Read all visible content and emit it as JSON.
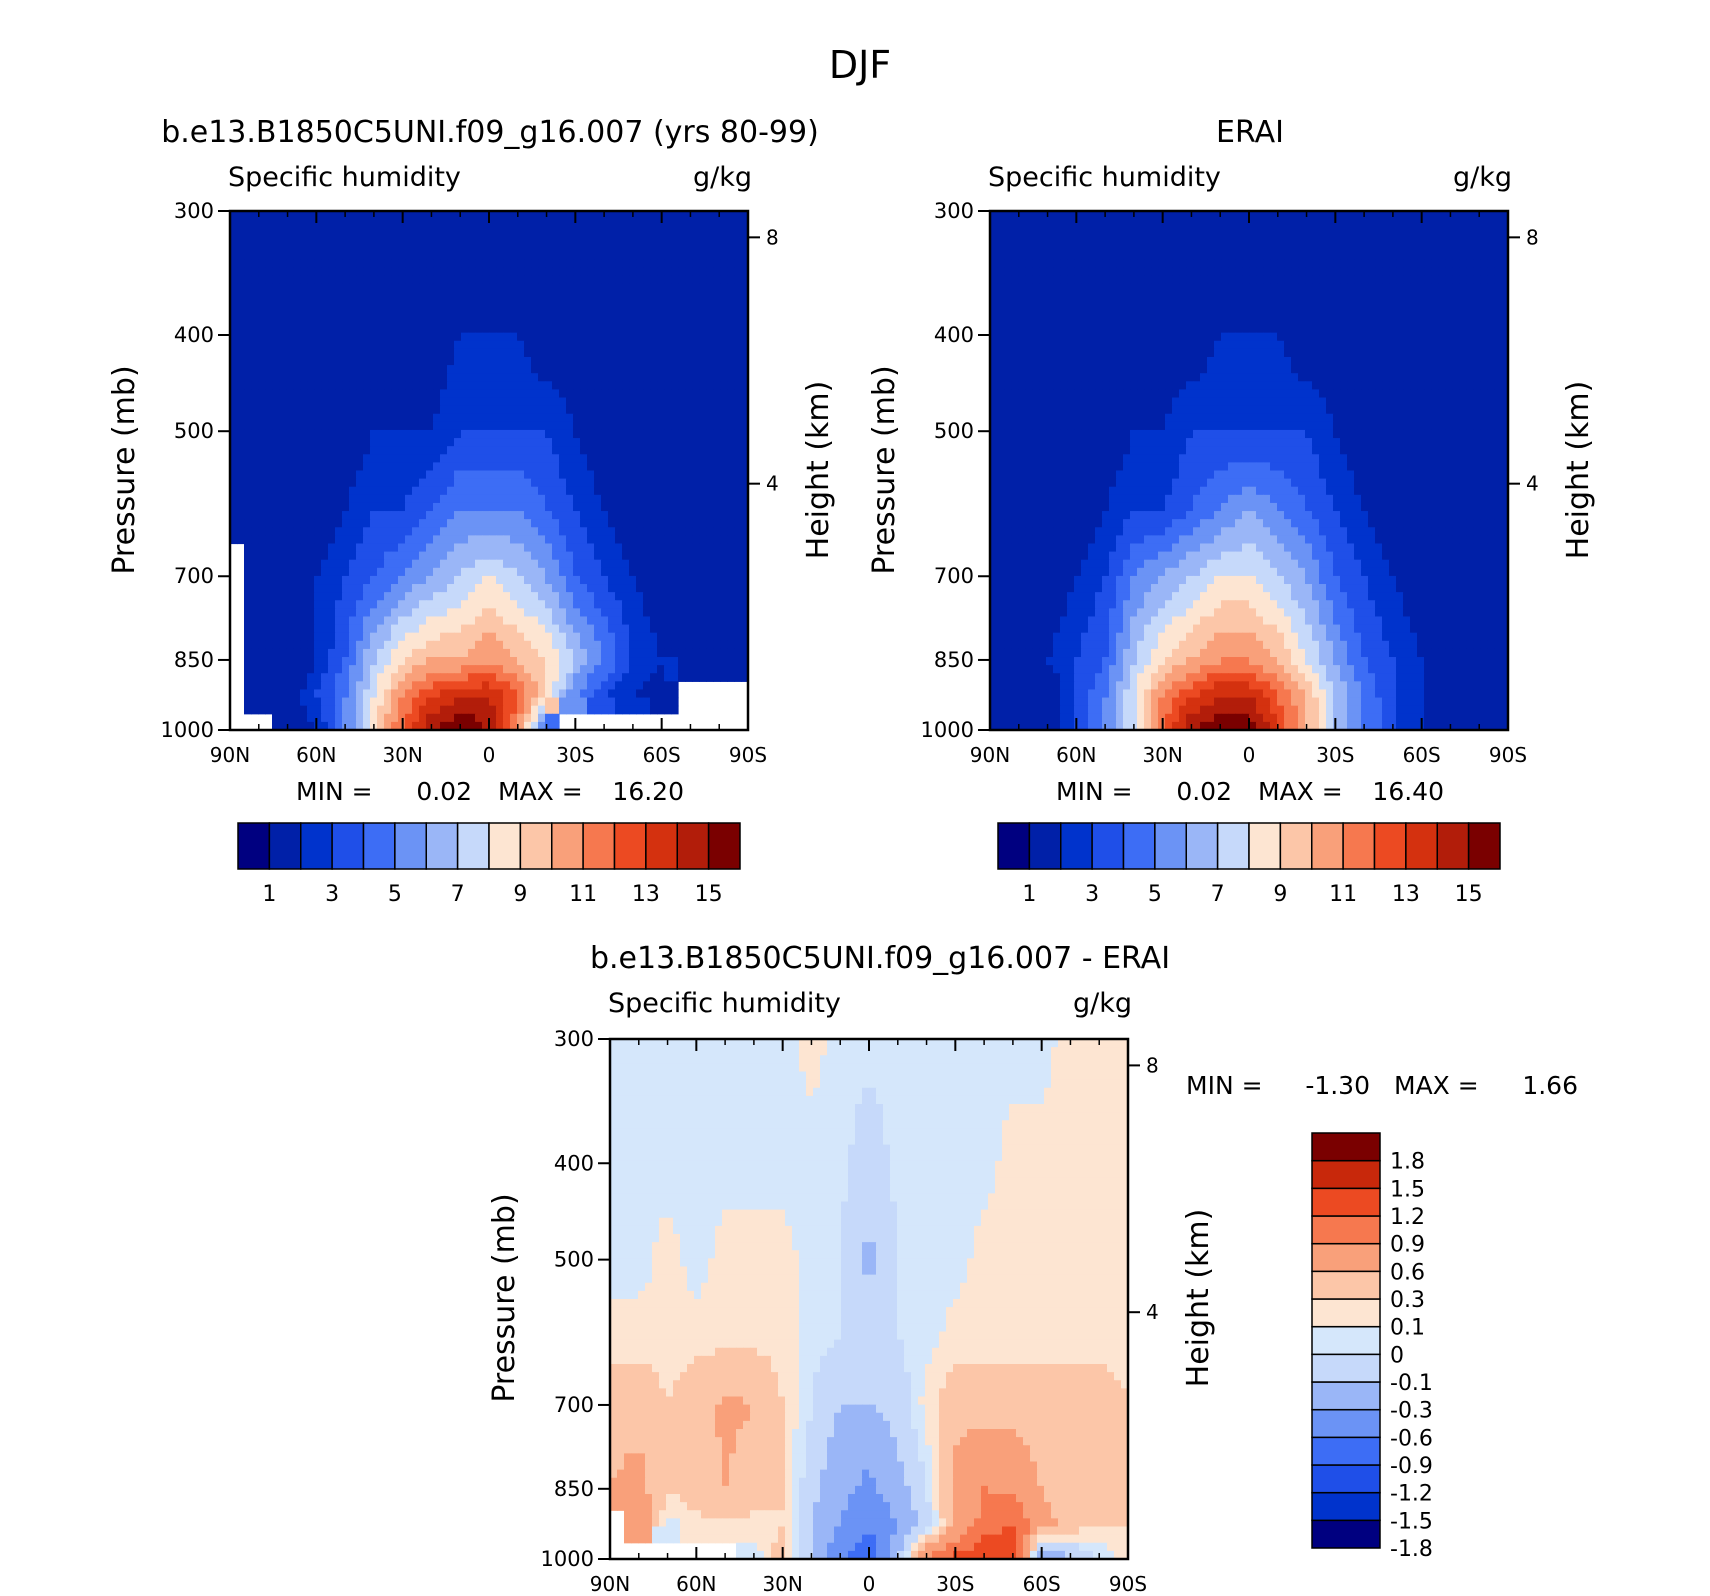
{
  "figure": {
    "title": "DJF"
  },
  "colors": {
    "abs_levels": [
      "#000080",
      "#0020a8",
      "#0033cc",
      "#1f4fe8",
      "#3d6df5",
      "#6b93f5",
      "#9ab6f7",
      "#c6d9fa",
      "#fde5d2",
      "#fcc6a8",
      "#f9a07a",
      "#f6784f",
      "#ec4a22",
      "#d4310f",
      "#b21d0a",
      "#7a0000"
    ],
    "diff_levels": [
      "#000080",
      "#0033cc",
      "#1f4fe8",
      "#3d6df5",
      "#6b93f5",
      "#9ab6f7",
      "#c6d9fa",
      "#d5e7fb",
      "#fde5d2",
      "#fcc6a8",
      "#f9a07a",
      "#f6784f",
      "#ec4a22",
      "#c8280b",
      "#7a0000"
    ]
  },
  "chart_data": [
    {
      "type": "heatmap",
      "panel": "model",
      "title": "b.e13.B1850C5UNI.f09_g16.007 (yrs 80-99)",
      "left_label": "Specific humidity",
      "right_label": "g/kg",
      "ylabel": "Pressure (mb)",
      "y2label": "Height (km)",
      "x_ticks": [
        "90N",
        "60N",
        "30N",
        "0",
        "30S",
        "60S",
        "90S"
      ],
      "y_ticks": [
        300,
        400,
        500,
        700,
        850,
        1000
      ],
      "y2_ticks": [
        8,
        4
      ],
      "ylim": [
        300,
        1000
      ],
      "min_text": "MIN =",
      "min_value": "0.02",
      "max_text": "MAX =",
      "max_value": "16.20",
      "min": 0.02,
      "max": 16.2,
      "colorbar_ticks": [
        "1",
        "3",
        "5",
        "7",
        "9",
        "11",
        "13",
        "15"
      ],
      "levels": [
        1,
        2,
        3,
        4,
        5,
        6,
        7,
        8,
        9,
        10,
        11,
        12,
        13,
        14,
        15
      ],
      "lat": [
        -90,
        -80,
        -70,
        -60,
        -50,
        -40,
        -30,
        -20,
        -10,
        0,
        10,
        20,
        30,
        40,
        50,
        60,
        70,
        80,
        90
      ],
      "field_rows": [
        {
          "p": 1000,
          "values": [
            null,
            null,
            null,
            null,
            null,
            null,
            null,
            4,
            11,
            15,
            16,
            15,
            12,
            9,
            5,
            2,
            1,
            null,
            null
          ]
        },
        {
          "p": 925,
          "values": [
            null,
            null,
            null,
            1,
            2,
            3,
            5,
            9,
            12,
            14,
            14,
            13,
            11,
            8,
            5,
            3,
            1,
            1,
            null
          ]
        },
        {
          "p": 850,
          "values": [
            1,
            1,
            1,
            2,
            3,
            5,
            7,
            9,
            10,
            11,
            10,
            10,
            9,
            7,
            4,
            2,
            1,
            1,
            null
          ]
        },
        {
          "p": 700,
          "values": [
            1,
            1,
            1,
            1,
            2,
            3,
            4,
            6,
            7,
            8,
            7,
            6,
            5,
            4,
            3,
            2,
            1,
            1,
            null
          ]
        },
        {
          "p": 600,
          "values": [
            1,
            1,
            1,
            1,
            1,
            2,
            3,
            4,
            5,
            5,
            5,
            4,
            3,
            3,
            2,
            1,
            1,
            1,
            1
          ]
        },
        {
          "p": 500,
          "values": [
            1,
            1,
            1,
            1,
            1,
            1,
            2,
            3,
            3,
            3,
            3,
            2,
            2,
            2,
            1,
            1,
            1,
            1,
            1
          ]
        },
        {
          "p": 400,
          "values": [
            1,
            1,
            1,
            1,
            1,
            1,
            1,
            1,
            2,
            2,
            2,
            1,
            1,
            1,
            1,
            1,
            1,
            1,
            1
          ]
        },
        {
          "p": 300,
          "values": [
            1,
            1,
            1,
            1,
            1,
            1,
            1,
            1,
            1,
            1,
            1,
            1,
            1,
            1,
            1,
            1,
            1,
            1,
            1
          ]
        }
      ]
    },
    {
      "type": "heatmap",
      "panel": "obs",
      "title": "ERAI",
      "left_label": "Specific humidity",
      "right_label": "g/kg",
      "ylabel": "Pressure (mb)",
      "y2label": "Height (km)",
      "x_ticks": [
        "90N",
        "60N",
        "30N",
        "0",
        "30S",
        "60S",
        "90S"
      ],
      "y_ticks": [
        300,
        400,
        500,
        700,
        850,
        1000
      ],
      "y2_ticks": [
        8,
        4
      ],
      "ylim": [
        300,
        1000
      ],
      "min_text": "MIN =",
      "min_value": "0.02",
      "max_text": "MAX =",
      "max_value": "16.40",
      "min": 0.02,
      "max": 16.4,
      "colorbar_ticks": [
        "1",
        "3",
        "5",
        "7",
        "9",
        "11",
        "13",
        "15"
      ],
      "levels": [
        1,
        2,
        3,
        4,
        5,
        6,
        7,
        8,
        9,
        10,
        11,
        12,
        13,
        14,
        15
      ],
      "lat": [
        -90,
        -80,
        -70,
        -60,
        -50,
        -40,
        -30,
        -20,
        -10,
        0,
        10,
        20,
        30,
        40,
        50,
        60,
        70,
        80,
        90
      ],
      "field_rows": [
        {
          "p": 1000,
          "values": [
            1,
            1,
            1,
            2,
            3,
            5,
            7,
            10,
            13,
            16,
            16,
            15,
            12,
            8,
            5,
            3,
            1,
            1,
            1
          ]
        },
        {
          "p": 925,
          "values": [
            1,
            1,
            1,
            2,
            3,
            5,
            7,
            10,
            12,
            14,
            14,
            13,
            11,
            8,
            5,
            3,
            1,
            1,
            1
          ]
        },
        {
          "p": 850,
          "values": [
            1,
            1,
            1,
            2,
            3,
            4,
            6,
            8,
            10,
            11,
            11,
            10,
            9,
            7,
            4,
            3,
            2,
            1,
            1
          ]
        },
        {
          "p": 700,
          "values": [
            1,
            1,
            1,
            1,
            2,
            3,
            4,
            6,
            7,
            8,
            8,
            7,
            6,
            5,
            3,
            2,
            1,
            1,
            1
          ]
        },
        {
          "p": 600,
          "values": [
            1,
            1,
            1,
            1,
            1,
            2,
            3,
            4,
            5,
            6,
            5,
            4,
            3,
            3,
            2,
            1,
            1,
            1,
            1
          ]
        },
        {
          "p": 500,
          "values": [
            1,
            1,
            1,
            1,
            1,
            1,
            2,
            3,
            3,
            3,
            3,
            3,
            2,
            2,
            1,
            1,
            1,
            1,
            1
          ]
        },
        {
          "p": 400,
          "values": [
            1,
            1,
            1,
            1,
            1,
            1,
            1,
            1,
            2,
            2,
            2,
            1,
            1,
            1,
            1,
            1,
            1,
            1,
            1
          ]
        },
        {
          "p": 300,
          "values": [
            1,
            1,
            1,
            1,
            1,
            1,
            1,
            1,
            1,
            1,
            1,
            1,
            1,
            1,
            1,
            1,
            1,
            1,
            1
          ]
        }
      ]
    },
    {
      "type": "heatmap",
      "panel": "diff",
      "title": "b.e13.B1850C5UNI.f09_g16.007 - ERAI",
      "left_label": "Specific humidity",
      "right_label": "g/kg",
      "ylabel": "Pressure (mb)",
      "y2label": "Height (km)",
      "x_ticks": [
        "90N",
        "60N",
        "30N",
        "0",
        "30S",
        "60S",
        "90S"
      ],
      "y_ticks": [
        300,
        400,
        500,
        700,
        850,
        1000
      ],
      "y2_ticks": [
        8,
        4
      ],
      "ylim": [
        300,
        1000
      ],
      "min_text": "MIN =",
      "min_value": "-1.30",
      "max_text": "MAX =",
      "max_value": "1.66",
      "min": -1.3,
      "max": 1.66,
      "colorbar_ticks": [
        "1.8",
        "1.5",
        "1.2",
        "0.9",
        "0.6",
        "0.3",
        "0.1",
        "0",
        "-0.1",
        "-0.3",
        "-0.6",
        "-0.9",
        "-1.2",
        "-1.5",
        "-1.8"
      ],
      "levels": [
        -1.8,
        -1.5,
        -1.2,
        -0.9,
        -0.6,
        -0.3,
        -0.1,
        0,
        0.1,
        0.3,
        0.6,
        0.9,
        1.2,
        1.5,
        1.8
      ],
      "lat": [
        -90,
        -80,
        -70,
        -60,
        -50,
        -40,
        -30,
        -20,
        -10,
        0,
        10,
        20,
        30,
        40,
        50,
        60,
        70,
        80,
        90
      ],
      "field_rows": [
        {
          "p": 1000,
          "values": [
            0.1,
            -0.1,
            -0.3,
            -0.6,
            1.2,
            1.2,
            1.0,
            0.6,
            -0.3,
            -1.1,
            -0.9,
            -0.3,
            0.2,
            -0.1,
            null,
            null,
            null,
            null,
            null
          ]
        },
        {
          "p": 925,
          "values": [
            0.1,
            0.1,
            0.2,
            0.4,
            0.9,
            0.7,
            0.3,
            -0.2,
            -0.6,
            -0.9,
            -0.6,
            -0.3,
            0.1,
            0.05,
            0.05,
            0.05,
            -0.05,
            0.5,
            null
          ]
        },
        {
          "p": 850,
          "values": [
            0.2,
            0.2,
            0.2,
            0.3,
            0.5,
            0.6,
            0.4,
            -0.1,
            -0.4,
            -0.7,
            -0.5,
            -0.2,
            0.1,
            0.2,
            0.3,
            0.2,
            0.1,
            0.4,
            0.3
          ]
        },
        {
          "p": 700,
          "values": [
            0.1,
            0.2,
            0.2,
            0.2,
            0.2,
            0.2,
            0.2,
            0.05,
            -0.2,
            -0.3,
            -0.3,
            -0.1,
            0.1,
            0.3,
            0.35,
            0.2,
            0.1,
            0.2,
            0.2
          ]
        },
        {
          "p": 600,
          "values": [
            0.05,
            0.05,
            0.05,
            0.05,
            0.05,
            0.05,
            0.05,
            -0.05,
            -0.1,
            -0.2,
            -0.1,
            -0.05,
            0.05,
            0.05,
            0.05,
            0.05,
            0.05,
            0.05,
            0.05
          ]
        },
        {
          "p": 500,
          "values": [
            0.05,
            0.05,
            0.05,
            0.05,
            0.05,
            0.05,
            -0.05,
            -0.05,
            -0.1,
            -0.35,
            -0.1,
            -0.05,
            0.05,
            0.05,
            0.05,
            -0.05,
            0.05,
            -0.05,
            -0.05
          ]
        },
        {
          "p": 400,
          "values": [
            0.05,
            0.05,
            0.05,
            0.05,
            0.05,
            -0.05,
            -0.05,
            -0.05,
            -0.05,
            -0.2,
            -0.05,
            -0.05,
            -0.05,
            -0.05,
            -0.05,
            -0.05,
            -0.05,
            -0.05,
            -0.05
          ]
        },
        {
          "p": 300,
          "values": [
            0.05,
            0.05,
            0.05,
            -0.05,
            -0.05,
            -0.05,
            -0.05,
            -0.05,
            -0.05,
            -0.05,
            -0.05,
            0.05,
            -0.05,
            -0.05,
            -0.05,
            -0.05,
            -0.05,
            -0.05,
            -0.05
          ]
        }
      ]
    }
  ]
}
